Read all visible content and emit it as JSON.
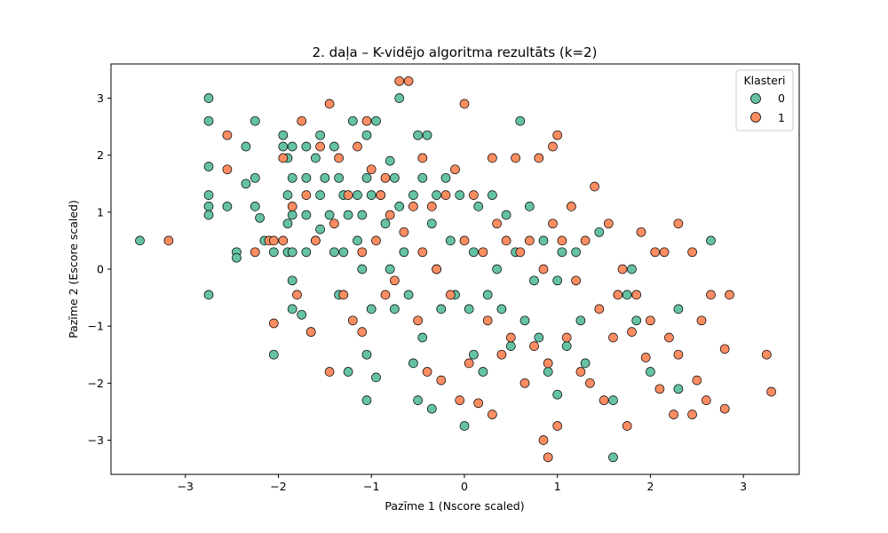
{
  "chart_data": {
    "type": "scatter",
    "title": "2. daļa – K-vidējo algoritma rezultāts (k=2)",
    "xlabel": "Pazīme 1 (Nscore scaled)",
    "ylabel": "Pazīme 2 (Escore scaled)",
    "xlim": [
      -3.8,
      3.6
    ],
    "ylim": [
      -3.6,
      3.6
    ],
    "xticks": [
      -3,
      -2,
      -1,
      0,
      1,
      2,
      3
    ],
    "xtick_labels": [
      "−3",
      "−2",
      "−1",
      "0",
      "1",
      "2",
      "3"
    ],
    "yticks": [
      -3,
      -2,
      -1,
      0,
      1,
      2,
      3
    ],
    "ytick_labels": [
      "−3",
      "−2",
      "−1",
      "0",
      "1",
      "2",
      "3"
    ],
    "grid": false,
    "legend": {
      "title": "Klasteri",
      "placement": "top-right"
    },
    "series": [
      {
        "name": "0",
        "color": "#66c2a5",
        "x": [
          -3.49,
          -2.75,
          -2.75,
          -2.75,
          -2.75,
          -2.75,
          -2.75,
          -2.75,
          -2.55,
          -2.45,
          -2.45,
          -2.35,
          -2.35,
          -2.25,
          -2.25,
          -2.25,
          -2.2,
          -2.15,
          -2.05,
          -2.05,
          -1.95,
          -1.95,
          -1.9,
          -1.9,
          -1.9,
          -1.9,
          -1.85,
          -1.85,
          -1.85,
          -1.85,
          -1.85,
          -1.85,
          -1.75,
          -1.7,
          -1.7,
          -1.7,
          -1.7,
          -1.65,
          -1.6,
          -1.6,
          -1.55,
          -1.55,
          -1.55,
          -1.5,
          -1.45,
          -1.4,
          -1.4,
          -1.35,
          -1.35,
          -1.3,
          -1.3,
          -1.25,
          -1.25,
          -1.2,
          -1.15,
          -1.15,
          -1.1,
          -1.1,
          -1.05,
          -1.05,
          -1.05,
          -1.05,
          -1.0,
          -1.0,
          -0.95,
          -0.95,
          -0.9,
          -0.85,
          -0.8,
          -0.8,
          -0.75,
          -0.75,
          -0.7,
          -0.7,
          -0.65,
          -0.6,
          -0.55,
          -0.55,
          -0.5,
          -0.5,
          -0.45,
          -0.45,
          -0.4,
          -0.35,
          -0.35,
          -0.3,
          -0.3,
          -0.25,
          -0.2,
          -0.15,
          -0.1,
          -0.05,
          0.0,
          0.05,
          0.1,
          0.1,
          0.15,
          0.2,
          0.25,
          0.3,
          0.35,
          0.4,
          0.45,
          0.5,
          0.55,
          0.6,
          0.65,
          0.7,
          0.75,
          0.8,
          0.85,
          0.9,
          1.0,
          1.0,
          1.05,
          1.1,
          1.2,
          1.25,
          1.3,
          1.45,
          1.6,
          1.6,
          1.75,
          1.8,
          1.85,
          2.0,
          2.3,
          2.3,
          2.65
        ],
        "y": [
          0.5,
          3.0,
          2.6,
          1.8,
          1.3,
          1.1,
          0.95,
          -0.45,
          1.1,
          0.3,
          0.2,
          2.15,
          1.5,
          2.6,
          1.6,
          1.1,
          0.9,
          0.5,
          0.3,
          -1.5,
          2.35,
          2.15,
          1.95,
          1.3,
          0.8,
          0.3,
          2.15,
          1.6,
          0.95,
          0.3,
          -0.2,
          -0.7,
          -0.8,
          2.15,
          1.6,
          0.95,
          0.3,
          -1.1,
          1.95,
          0.5,
          2.35,
          1.3,
          0.7,
          1.6,
          0.95,
          2.15,
          0.3,
          1.6,
          -0.45,
          1.3,
          0.3,
          0.95,
          -1.8,
          2.6,
          1.3,
          0.5,
          0.95,
          0.0,
          2.35,
          1.6,
          -1.5,
          -2.3,
          1.3,
          -0.7,
          2.6,
          -1.9,
          1.3,
          0.8,
          1.9,
          0.0,
          1.6,
          -0.7,
          3.0,
          1.1,
          0.3,
          -0.45,
          1.3,
          -1.65,
          2.35,
          -2.3,
          1.6,
          -1.2,
          2.35,
          0.8,
          -2.45,
          1.3,
          0.0,
          -0.7,
          1.6,
          0.5,
          -0.45,
          1.3,
          -2.75,
          -0.7,
          0.3,
          -1.5,
          1.1,
          -1.8,
          -0.45,
          1.3,
          0.0,
          -0.7,
          0.95,
          -1.35,
          0.3,
          2.6,
          -0.9,
          1.1,
          -0.2,
          -1.2,
          0.5,
          -1.8,
          -2.2,
          -0.2,
          0.3,
          -1.35,
          0.3,
          -0.9,
          -1.65,
          0.65,
          -3.3,
          -2.3,
          -0.45,
          0.0,
          -0.9,
          -1.8,
          -0.7,
          -2.1,
          0.5
        ]
      },
      {
        "name": "1",
        "color": "#fc8d62",
        "x": [
          -3.18,
          -2.55,
          -2.55,
          -2.25,
          -2.1,
          -2.05,
          -2.05,
          -1.95,
          -1.95,
          -1.85,
          -1.8,
          -1.75,
          -1.7,
          -1.65,
          -1.6,
          -1.55,
          -1.45,
          -1.45,
          -1.4,
          -1.35,
          -1.3,
          -1.25,
          -1.2,
          -1.15,
          -1.1,
          -1.1,
          -1.05,
          -1.0,
          -0.95,
          -0.9,
          -0.85,
          -0.85,
          -0.8,
          -0.75,
          -0.7,
          -0.65,
          -0.6,
          -0.55,
          -0.5,
          -0.45,
          -0.45,
          -0.4,
          -0.35,
          -0.3,
          -0.25,
          -0.2,
          -0.15,
          -0.1,
          -0.05,
          0.0,
          0.0,
          0.05,
          0.1,
          0.15,
          0.2,
          0.25,
          0.3,
          0.3,
          0.35,
          0.4,
          0.45,
          0.5,
          0.55,
          0.6,
          0.65,
          0.7,
          0.75,
          0.8,
          0.85,
          0.9,
          0.95,
          1.0,
          1.0,
          1.05,
          1.1,
          1.15,
          1.2,
          1.25,
          1.3,
          1.35,
          1.4,
          1.45,
          1.5,
          1.55,
          1.6,
          1.65,
          1.7,
          1.75,
          1.8,
          1.85,
          1.9,
          1.95,
          2.0,
          2.05,
          2.1,
          2.15,
          2.2,
          2.25,
          2.3,
          2.3,
          2.45,
          2.45,
          2.5,
          2.55,
          2.6,
          2.65,
          2.8,
          2.8,
          2.85,
          3.25,
          3.3,
          0.85,
          0.9,
          0.95
        ],
        "y": [
          0.5,
          2.35,
          1.75,
          0.3,
          0.5,
          -0.95,
          0.5,
          1.95,
          0.5,
          1.1,
          -0.45,
          2.6,
          1.3,
          -1.1,
          0.5,
          2.15,
          -1.8,
          2.9,
          0.8,
          1.95,
          -0.45,
          1.3,
          -0.9,
          2.15,
          0.3,
          -1.1,
          2.6,
          1.75,
          0.5,
          1.3,
          -0.45,
          1.6,
          0.95,
          -0.2,
          3.3,
          0.65,
          3.3,
          1.1,
          -0.9,
          0.3,
          1.95,
          -1.8,
          1.1,
          0.0,
          -1.95,
          1.3,
          -0.45,
          1.75,
          -2.3,
          2.9,
          0.5,
          -1.65,
          1.3,
          -2.35,
          0.3,
          -0.9,
          1.95,
          -2.55,
          0.8,
          -1.5,
          0.5,
          -1.2,
          1.95,
          0.3,
          -2.0,
          0.5,
          -1.35,
          1.95,
          0.0,
          -1.65,
          0.8,
          2.35,
          -2.75,
          0.5,
          -1.2,
          1.1,
          -0.2,
          -1.8,
          0.5,
          -2.0,
          1.45,
          -0.7,
          -2.3,
          0.8,
          -1.2,
          -0.45,
          0.0,
          -2.75,
          -1.1,
          -0.45,
          0.65,
          -1.55,
          -0.9,
          0.3,
          -2.1,
          0.3,
          -1.2,
          -2.55,
          -1.5,
          0.8,
          -2.55,
          0.3,
          -1.95,
          -0.9,
          -2.3,
          -0.45,
          -1.4,
          -2.45,
          -0.45,
          -1.5,
          -2.15,
          -3.0,
          -3.3,
          2.15
        ]
      }
    ]
  }
}
